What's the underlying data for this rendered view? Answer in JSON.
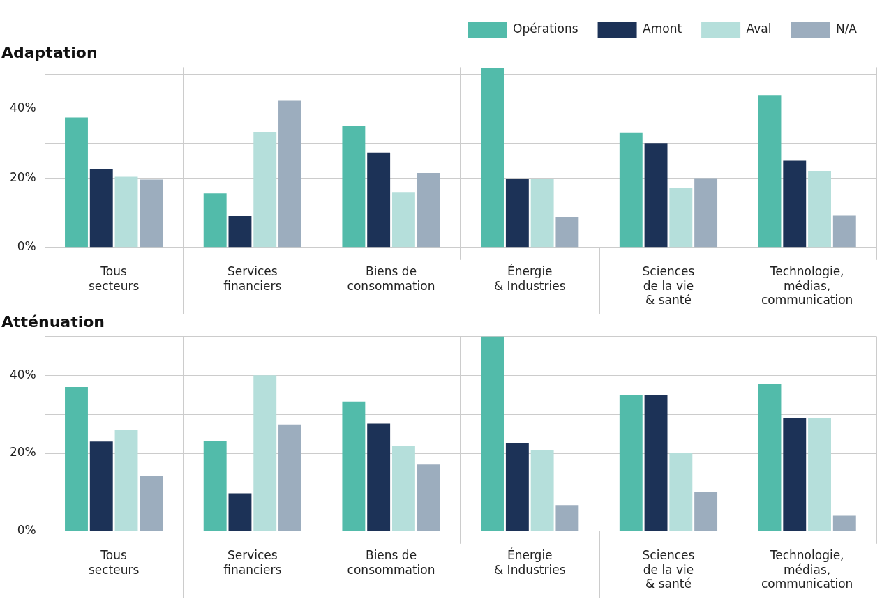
{
  "chart_data": [
    {
      "type": "bar",
      "title": "Adaptation",
      "categories": [
        "Tous\nsecteurs",
        "Services\nfinanciers",
        "Biens de\nconsommation",
        "Énergie\n& Industries",
        "Sciences\nde la vie\n& santé",
        "Technologie,\nmédias,\ncommunication"
      ],
      "series": [
        {
          "name": "Opérations",
          "color": "#52bbaa",
          "values": [
            37.5,
            15.6,
            35.2,
            51.8,
            33.0,
            44.0
          ]
        },
        {
          "name": "Amont",
          "color": "#1c3257",
          "values": [
            22.5,
            9.0,
            27.4,
            19.8,
            30.1,
            25.0
          ]
        },
        {
          "name": "Aval",
          "color": "#b5dfdb",
          "values": [
            20.4,
            33.3,
            15.8,
            19.8,
            17.1,
            22.1
          ]
        },
        {
          "name": "N/A",
          "color": "#9cadbe",
          "values": [
            19.6,
            42.3,
            21.5,
            8.8,
            20.0,
            9.1
          ]
        }
      ],
      "ylim": [
        0,
        52
      ],
      "yticks": [
        {
          "value": 0,
          "label": "0%"
        },
        {
          "value": 10,
          "label": null
        },
        {
          "value": 20,
          "label": "20%"
        },
        {
          "value": 30,
          "label": null
        },
        {
          "value": 40,
          "label": "40%"
        },
        {
          "value": 50,
          "label": null
        }
      ],
      "grid": true,
      "legend": "top right"
    },
    {
      "type": "bar",
      "title": "Atténuation",
      "categories": [
        "Tous\nsecteurs",
        "Services\nfinanciers",
        "Biens de\nconsommation",
        "Énergie\n& Industries",
        "Sciences\nde la vie\n& santé",
        "Technologie,\nmédias,\ncommunication"
      ],
      "series": [
        {
          "color": "#52bbaa",
          "values": [
            37.0,
            23.2,
            33.3,
            50.0,
            35.0,
            37.9
          ]
        },
        {
          "color": "#1c3257",
          "values": [
            23.0,
            9.7,
            27.6,
            22.7,
            35.0,
            29.0
          ]
        },
        {
          "color": "#b5dfdb",
          "values": [
            26.1,
            40.0,
            21.9,
            20.8,
            20.0,
            29.0
          ]
        },
        {
          "color": "#9cadbe",
          "values": [
            14.1,
            27.4,
            17.1,
            6.7,
            10.1,
            4.0
          ]
        }
      ],
      "ylim": [
        0,
        50
      ],
      "yticks": [
        {
          "value": 0,
          "label": "0%"
        },
        {
          "value": 10,
          "label": null
        },
        {
          "value": 20,
          "label": "20%"
        },
        {
          "value": 30,
          "label": null
        },
        {
          "value": 40,
          "label": "40%"
        },
        {
          "value": 50,
          "label": null
        }
      ],
      "grid": true,
      "legend": false
    }
  ]
}
